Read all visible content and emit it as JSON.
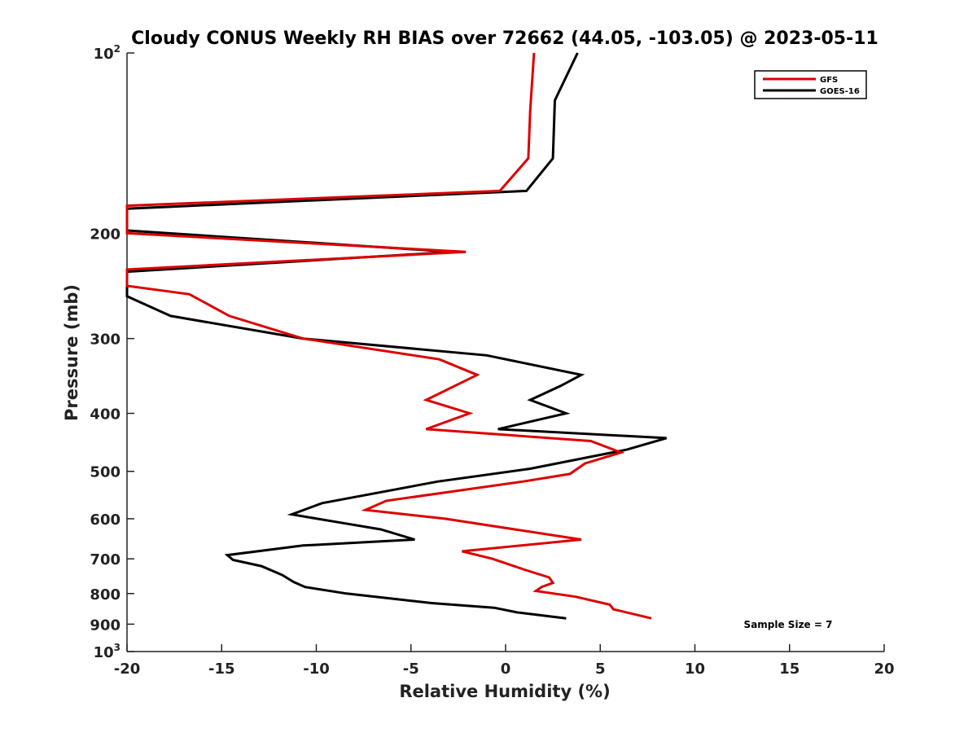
{
  "chart_data": {
    "type": "line",
    "title": "Cloudy CONUS Weekly RH BIAS over 72662 (44.05, -103.05) @ 2023-05-11",
    "xlabel": "Relative Humidity (%)",
    "ylabel": "Pressure (mb)",
    "xlim": [
      -20,
      20
    ],
    "ylim": [
      100,
      1000
    ],
    "y_scale": "log",
    "y_reversed": true,
    "grid": false,
    "legend_position": "top-right",
    "annotation": "Sample Size = 7",
    "x_ticks": [
      "-20",
      "-15",
      "-10",
      "-5",
      "0",
      "5",
      "10",
      "15",
      "20"
    ],
    "y_ticks": [
      {
        "value": 100,
        "base": "10",
        "exp": "2"
      },
      {
        "value": 200,
        "label": "200"
      },
      {
        "value": 300,
        "label": "300"
      },
      {
        "value": 400,
        "label": "400"
      },
      {
        "value": 500,
        "label": "500"
      },
      {
        "value": 600,
        "label": "600"
      },
      {
        "value": 700,
        "label": "700"
      },
      {
        "value": 800,
        "label": "800"
      },
      {
        "value": 900,
        "label": "900"
      },
      {
        "value": 1000,
        "base": "10",
        "exp": "3"
      }
    ],
    "series": [
      {
        "name": "GFS",
        "color": "#dd0000",
        "points": [
          [
            1.5,
            100
          ],
          [
            1.3,
            125
          ],
          [
            1.2,
            150
          ],
          [
            -0.3,
            170
          ],
          [
            -20,
            180
          ],
          [
            -20,
            200
          ],
          [
            -2.1,
            215
          ],
          [
            -20,
            230
          ],
          [
            -20,
            245
          ],
          [
            -16.7,
            253
          ],
          [
            -14.6,
            275
          ],
          [
            -10.7,
            300
          ],
          [
            -3.5,
            325
          ],
          [
            -1.5,
            345
          ],
          [
            -4.2,
            380
          ],
          [
            -1.9,
            400
          ],
          [
            -4.2,
            425
          ],
          [
            4.5,
            445
          ],
          [
            6.1,
            465
          ],
          [
            4.2,
            485
          ],
          [
            3.4,
            505
          ],
          [
            0.9,
            520
          ],
          [
            -6.3,
            560
          ],
          [
            -7.4,
            580
          ],
          [
            -3.2,
            600
          ],
          [
            4.0,
            650
          ],
          [
            -2.3,
            680
          ],
          [
            -0.7,
            700
          ],
          [
            1.0,
            730
          ],
          [
            2.3,
            752
          ],
          [
            2.5,
            768
          ],
          [
            1.9,
            780
          ],
          [
            1.6,
            792
          ],
          [
            3.7,
            810
          ],
          [
            5.5,
            835
          ],
          [
            5.7,
            850
          ],
          [
            7.7,
            880
          ]
        ]
      },
      {
        "name": "GOES-16",
        "color": "#000000",
        "points": [
          [
            3.8,
            100
          ],
          [
            2.6,
            120
          ],
          [
            2.5,
            150
          ],
          [
            1.1,
            170
          ],
          [
            -20,
            182
          ],
          [
            -20,
            198
          ],
          [
            -2.8,
            215
          ],
          [
            -20,
            232
          ],
          [
            -20,
            255
          ],
          [
            -17.7,
            275
          ],
          [
            -10.7,
            300
          ],
          [
            -1.0,
            320
          ],
          [
            4.0,
            345
          ],
          [
            2.9,
            360
          ],
          [
            1.3,
            380
          ],
          [
            3.2,
            400
          ],
          [
            -0.4,
            425
          ],
          [
            8.5,
            440
          ],
          [
            6.4,
            460
          ],
          [
            1.3,
            495
          ],
          [
            -3.6,
            520
          ],
          [
            -9.7,
            565
          ],
          [
            -11.3,
            590
          ],
          [
            -8.6,
            610
          ],
          [
            -6.6,
            625
          ],
          [
            -4.8,
            650
          ],
          [
            -10.7,
            665
          ],
          [
            -14.7,
            690
          ],
          [
            -14.4,
            703
          ],
          [
            -12.9,
            720
          ],
          [
            -11.8,
            745
          ],
          [
            -11.2,
            765
          ],
          [
            -10.6,
            780
          ],
          [
            -8.4,
            800
          ],
          [
            -3.9,
            830
          ],
          [
            -0.6,
            845
          ],
          [
            0.6,
            860
          ],
          [
            3.2,
            880
          ]
        ]
      }
    ]
  }
}
